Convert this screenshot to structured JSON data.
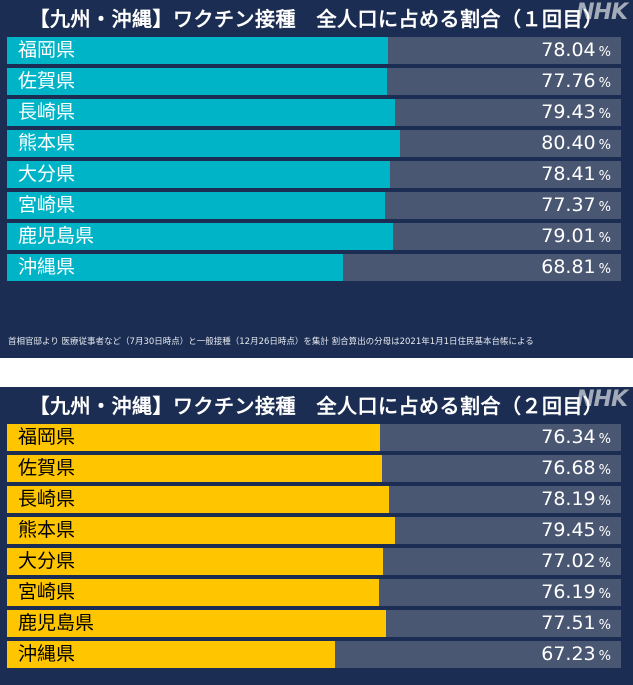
{
  "chart_data": [
    {
      "type": "bar",
      "title": "【九州・沖縄】ワクチン接種　全人口に占める割合（１回目）",
      "categories": [
        "福岡県",
        "佐賀県",
        "長崎県",
        "熊本県",
        "大分県",
        "宮崎県",
        "鹿児島県",
        "沖縄県"
      ],
      "values": [
        78.04,
        77.76,
        79.43,
        80.4,
        78.41,
        77.37,
        79.01,
        68.81
      ],
      "value_labels": [
        "78.04",
        "77.76",
        "79.43",
        "80.40",
        "78.41",
        "77.37",
        "79.01",
        "68.81"
      ],
      "unit": "%",
      "bar_color": "#00b4c8",
      "track_color": "#4a5772",
      "footnote": "首相官邸より 医療従事者など（7月30日時点）と一般接種（12月26日時点）を集計 割合算出の分母は2021年1月1日住民基本台帳による"
    },
    {
      "type": "bar",
      "title": "【九州・沖縄】ワクチン接種　全人口に占める割合（２回目）",
      "categories": [
        "福岡県",
        "佐賀県",
        "長崎県",
        "熊本県",
        "大分県",
        "宮崎県",
        "鹿児島県",
        "沖縄県"
      ],
      "values": [
        76.34,
        76.68,
        78.19,
        79.45,
        77.02,
        76.19,
        77.51,
        67.23
      ],
      "value_labels": [
        "76.34",
        "76.68",
        "78.19",
        "79.45",
        "77.02",
        "76.19",
        "77.51",
        "67.23"
      ],
      "unit": "%",
      "bar_color": "#ffc600",
      "track_color": "#4a5772"
    }
  ],
  "logo_text": "NHK",
  "colors": {
    "panel_bg": "#1b2d52"
  }
}
